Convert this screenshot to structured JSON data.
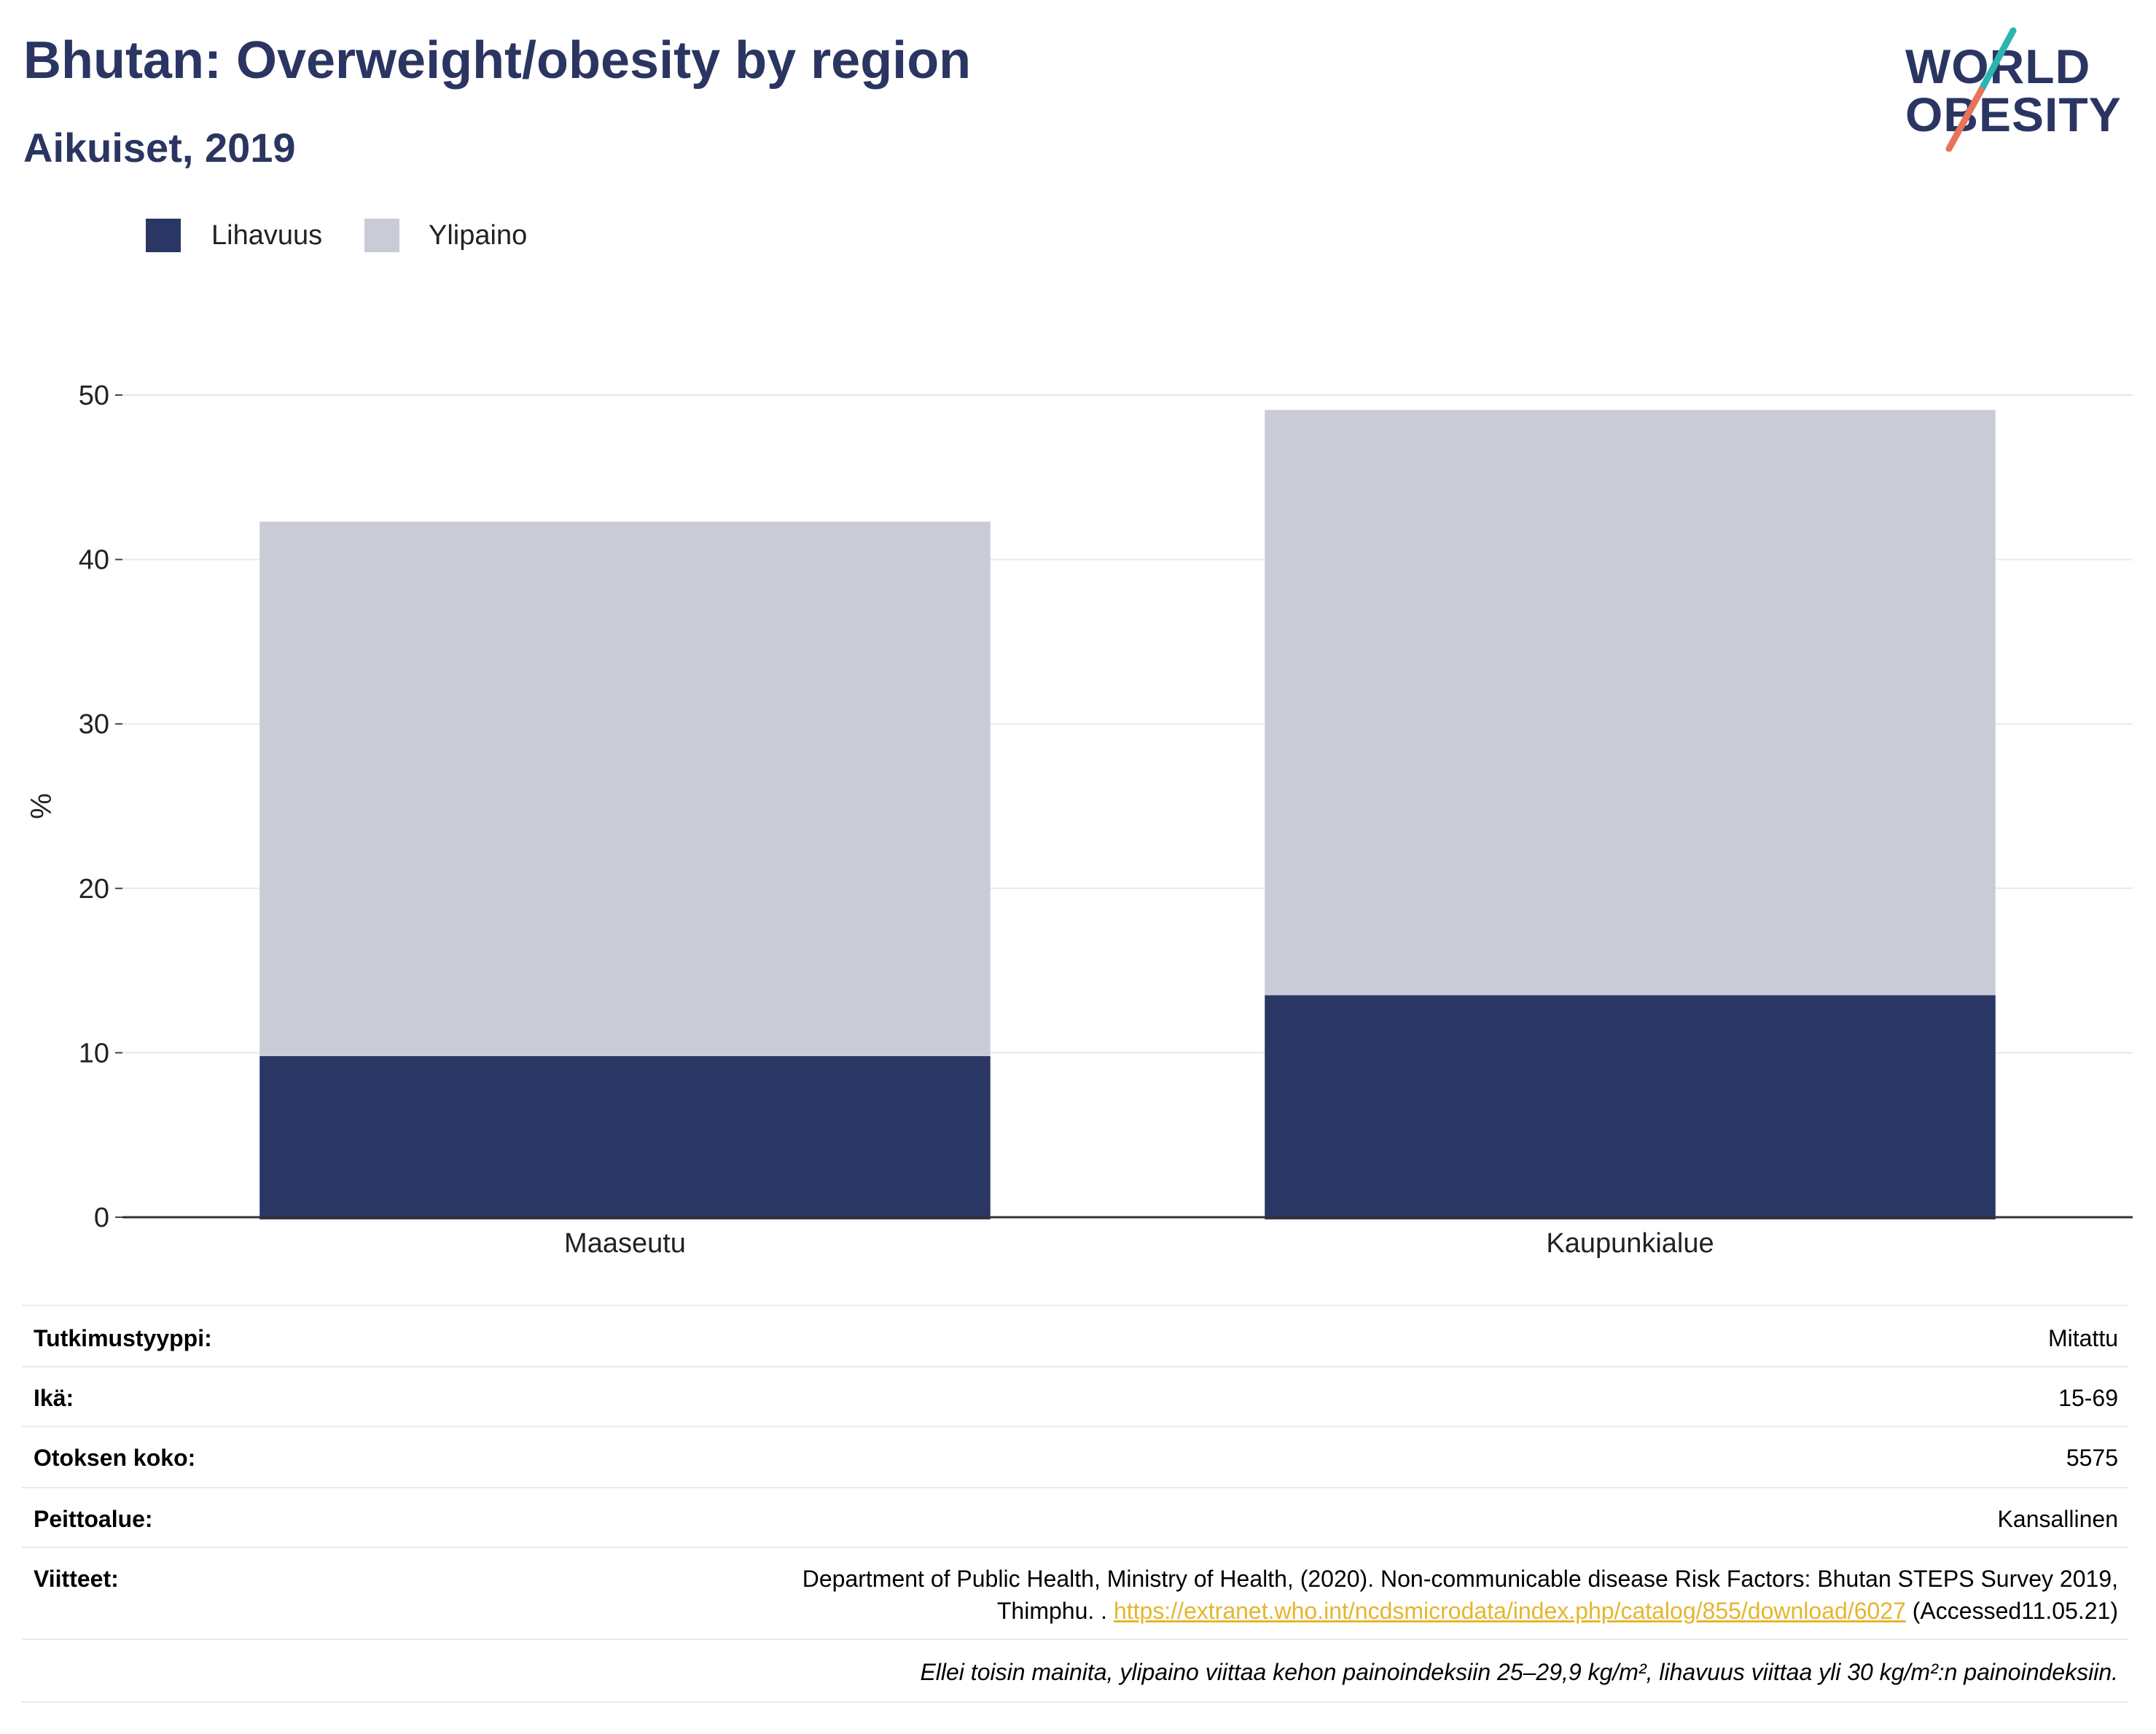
{
  "header": {
    "title": "Bhutan: Overweight/obesity by region",
    "subtitle": "Aikuiset, 2019"
  },
  "logo": {
    "line1": "WORLD",
    "line2": "OBESITY",
    "accent_colors": [
      "#2bb5b1",
      "#e8735a"
    ]
  },
  "colors": {
    "obesity": "#2a3663",
    "overweight": "#c9ccd7",
    "title": "#2a3561",
    "link": "#e6b52e"
  },
  "chart_data": {
    "type": "bar",
    "stacked": true,
    "categories": [
      "Maaseutu",
      "Kaupunkialue"
    ],
    "series": [
      {
        "name": "Lihavuus",
        "values": [
          9.8,
          13.5
        ],
        "color": "#2a3663"
      },
      {
        "name": "Ylipaino",
        "values": [
          32.5,
          35.6
        ],
        "color": "#c9ccd7"
      }
    ],
    "title": "",
    "xlabel": "",
    "ylabel": "%",
    "ylim": [
      0,
      50
    ],
    "yticks": [
      0,
      10,
      20,
      30,
      40,
      50
    ],
    "grid": true,
    "legend_position": "top-left"
  },
  "meta": {
    "rows": [
      {
        "key": "Tutkimustyyppi:",
        "value": "Mitattu"
      },
      {
        "key": "Ikä:",
        "value": "15-69"
      },
      {
        "key": "Otoksen koko:",
        "value": "5575"
      },
      {
        "key": "Peittoalue:",
        "value": "Kansallinen"
      }
    ],
    "reference": {
      "key": "Viitteet:",
      "text_line1": "Department of Public Health, Ministry of Health, (2020). Non-communicable disease Risk Factors: Bhutan STEPS Survey 2019,",
      "text_line2_prefix": "Thimphu. . ",
      "link": "https://extranet.who.int/ncdsmicrodata/index.php/catalog/855/download/6027",
      "suffix": " (Accessed11.05.21)"
    },
    "note": "Ellei toisin mainita, ylipaino viittaa kehon painoindeksiin 25–29,9 kg/m², lihavuus viittaa yli 30 kg/m²:n painoindeksiin."
  }
}
